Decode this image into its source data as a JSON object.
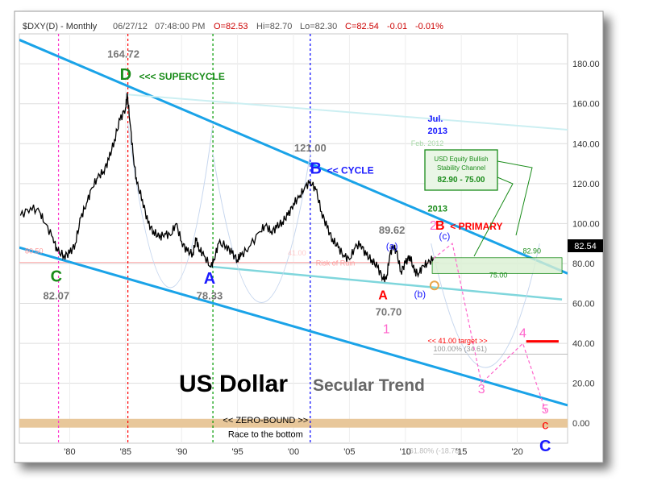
{
  "header": {
    "symbol": "$DXY(D) - Monthly",
    "date": "06/27/12",
    "time": "07:48:00 PM",
    "open": "O=82.53",
    "high": "Hi=82.70",
    "low": "Lo=82.30",
    "close": "C=82.54",
    "change": "-0.01",
    "change_pct": "-0.01%"
  },
  "title": {
    "main": "US Dollar",
    "sub": "Secular Trend"
  },
  "colors": {
    "price": "#000000",
    "channel": "#1aa3e8",
    "support": "#7fd6dc",
    "upper_faint": "#cceff2",
    "zero_bound": "#e8c79a",
    "target": "#ff0000",
    "projection": "#ff66cc",
    "wave_green": "#1a8c1a",
    "wave_blue": "#1a1aff",
    "wave_red": "#ff0000",
    "wave_pink": "#ff66cc",
    "grid": "#dddddd"
  },
  "chart_data": {
    "type": "line",
    "xlim": [
      1975.5,
      2024.5
    ],
    "ylim": [
      -10,
      195
    ],
    "y_ticks": [
      "180.00",
      "160.00",
      "140.00",
      "120.00",
      "100.00",
      "80.00",
      "60.00",
      "40.00",
      "20.00",
      "0.00"
    ],
    "y_tick_values": [
      180,
      160,
      140,
      120,
      100,
      80,
      60,
      40,
      20,
      0
    ],
    "x_ticks": [
      "'80",
      "'85",
      "'90",
      "'95",
      "'00",
      "'05",
      "'10",
      "'15",
      "'20"
    ],
    "x_tick_values": [
      1980,
      1985,
      1990,
      1995,
      2000,
      2005,
      2010,
      2015,
      2020
    ],
    "last_value_label": "82.54",
    "last_value": 82.54,
    "series": [
      {
        "x": [
          1975.6,
          1976.5,
          1977.3,
          1977.8,
          1978.5,
          1978.9,
          1979.5,
          1980.0,
          1980.5,
          1981.0,
          1981.5,
          1982.0,
          1982.5,
          1983.0,
          1983.5,
          1984.0,
          1984.5,
          1985.0,
          1985.15,
          1985.4,
          1985.7,
          1986.0,
          1986.5,
          1987.0,
          1987.5,
          1988.0,
          1988.5,
          1989.0,
          1989.5,
          1990.0,
          1990.5,
          1991.0,
          1991.3,
          1991.6,
          1992.0,
          1992.6,
          1992.9,
          1993.3,
          1994.0,
          1994.5,
          1995.0,
          1995.3,
          1996.0,
          1997.0,
          1997.5,
          1998.0,
          1998.5,
          1999.0,
          1999.5,
          2000.0,
          2000.5,
          2001.0,
          2001.5,
          2002.0,
          2002.5,
          2003.0,
          2003.5,
          2004.0,
          2004.5,
          2005.0,
          2005.5,
          2006.0,
          2006.5,
          2007.0,
          2007.5,
          2008.0,
          2008.3,
          2008.6,
          2008.9,
          2009.2,
          2009.6,
          2010.0,
          2010.4,
          2010.8,
          2011.2,
          2011.6,
          2012.0,
          2012.5
        ],
        "values": [
          104,
          108,
          106,
          100,
          93,
          86,
          84,
          85,
          90,
          103,
          110,
          118,
          123,
          126,
          132,
          142,
          152,
          158,
          164.72,
          150,
          133,
          120,
          112,
          100,
          96,
          93,
          95,
          94,
          100,
          91,
          86,
          85,
          92,
          87,
          84,
          78.33,
          82,
          90,
          89,
          85,
          82,
          84,
          88,
          96,
          99,
          96,
          98,
          101,
          104,
          110,
          113,
          118,
          121,
          117,
          106,
          98,
          92,
          88,
          84,
          82,
          88,
          90,
          84,
          82,
          78,
          73,
          72,
          84,
          89,
          86,
          76,
          80,
          84,
          76,
          75,
          79,
          80,
          82.54
        ]
      }
    ],
    "lines": [
      {
        "name": "",
        "x": [
          1975.5,
          2024.5
        ],
        "y": [
          192,
          75
        ]
      },
      {
        "name": "",
        "x": [
          1975.5,
          2024.5
        ],
        "y": [
          88,
          9
        ]
      },
      {
        "name": "",
        "x": [
          1992.5,
          2024
        ],
        "y": [
          78.5,
          62
        ]
      },
      {
        "name": "",
        "x": [
          1985,
          2024.5
        ],
        "y": [
          164.7,
          147
        ]
      }
    ],
    "vertical_lines": [
      {
        "x": 1979.0,
        "color": "#ff33cc"
      },
      {
        "x": 1985.2,
        "color": "#ff0000"
      },
      {
        "x": 1992.8,
        "color": "#009900"
      },
      {
        "x": 2001.5,
        "color": "#0000ff"
      }
    ],
    "wave_labels": [
      {
        "text": "D",
        "color": "#1a8c1a",
        "x": 1985.0,
        "y": 172
      },
      {
        "text": "164.72",
        "color": "#777777",
        "x": 1984.8,
        "y": 183
      },
      {
        "text": "<<< SUPERCYCLE",
        "color": "#1a8c1a",
        "x": 1986.2,
        "y": 172
      },
      {
        "text": "C",
        "color": "#1a8c1a",
        "x": 1978.8,
        "y": 71
      },
      {
        "text": "82.07",
        "color": "#777777",
        "x": 1978.8,
        "y": 62
      },
      {
        "text": "A",
        "color": "#1a1aff",
        "x": 1992.5,
        "y": 70
      },
      {
        "text": "78.33",
        "color": "#777777",
        "x": 1992.5,
        "y": 62
      },
      {
        "text": "B",
        "color": "#1a1aff",
        "x": 2002.0,
        "y": 125
      },
      {
        "text": "<< CYCLE",
        "color": "#1a1aff",
        "x": 2003.0,
        "y": 125
      },
      {
        "text": "121.00",
        "color": "#777777",
        "x": 2001.5,
        "y": 136
      },
      {
        "text": "A",
        "color": "#ff0000",
        "x": 2008.0,
        "y": 62
      },
      {
        "text": "70.70",
        "color": "#777777",
        "x": 2008.5,
        "y": 54
      },
      {
        "text": "1",
        "color": "#ff66cc",
        "x": 2008.3,
        "y": 45
      },
      {
        "text": "B",
        "color": "#ff0000",
        "x": 2013.1,
        "y": 97
      },
      {
        "text": "< PRIMARY",
        "color": "#ff0000",
        "x": 2014.0,
        "y": 97
      },
      {
        "text": "2",
        "color": "#ff66cc",
        "x": 2012.5,
        "y": 97
      },
      {
        "text": "(a)",
        "color": "#1a1aff",
        "x": 2008.8,
        "y": 87
      },
      {
        "text": "89.62",
        "color": "#777777",
        "x": 2008.8,
        "y": 95
      },
      {
        "text": "(b)",
        "color": "#1a1aff",
        "x": 2011.3,
        "y": 63
      },
      {
        "text": "(c)",
        "color": "#1a1aff",
        "x": 2013.5,
        "y": 92
      },
      {
        "text": "3",
        "color": "#ff66cc",
        "x": 2016.8,
        "y": 15
      },
      {
        "text": "4",
        "color": "#ff66cc",
        "x": 2020.5,
        "y": 43
      },
      {
        "text": "5",
        "color": "#ff66cc",
        "x": 2022.5,
        "y": 5
      },
      {
        "text": "c",
        "color": "#ff0000",
        "x": 2022.5,
        "y": -3
      },
      {
        "text": "C",
        "color": "#1a1aff",
        "x": 2022.5,
        "y": -14
      }
    ],
    "annotations": [
      {
        "text": "Jul.",
        "color": "#1a1aff",
        "x": 2012.0,
        "y": 151
      },
      {
        "text": "2013",
        "color": "#1a1aff",
        "x": 2012.0,
        "y": 145
      },
      {
        "text": "Feb. 2012",
        "color": "#a6d7a6",
        "x": 2010.5,
        "y": 139
      },
      {
        "text": "2013",
        "color": "#1a8c1a",
        "x": 2012.0,
        "y": 106
      },
      {
        "text": "82.90",
        "color": "#1a8c1a",
        "x": 2020.5,
        "y": 85
      },
      {
        "text": "75.00",
        "color": "#1a8c1a",
        "x": 2017.5,
        "y": 73
      },
      {
        "text": "80.50",
        "color": "#ff9999",
        "x": 1976.0,
        "y": 85
      },
      {
        "text": "41.00",
        "color": "#ffcccc",
        "x": 1999.5,
        "y": 84
      },
      {
        "text": "Risk of Ruin",
        "color": "#ff9999",
        "x": 2002.0,
        "y": 79
      },
      {
        "text": "<< 41.00 target >>",
        "color": "#ff0000",
        "x": 2012.0,
        "y": 40
      },
      {
        "text": "100.00% (34.61)",
        "color": "#999999",
        "x": 2012.5,
        "y": 36
      },
      {
        "text": "161.80% (-18.78)",
        "color": "#bbbbbb",
        "x": 2010.0,
        "y": -15
      },
      {
        "text": "<< ZERO-BOUND >>",
        "color": "#000000",
        "x": 1997.5,
        "y": 0
      },
      {
        "text": "Race to the bottom",
        "color": "#000000",
        "x": 1997.5,
        "y": -7
      }
    ],
    "callout_box": {
      "line1": "USD Equity Bullish",
      "line2": "Stability Channel",
      "line3": "82.90 - 75.00"
    }
  }
}
